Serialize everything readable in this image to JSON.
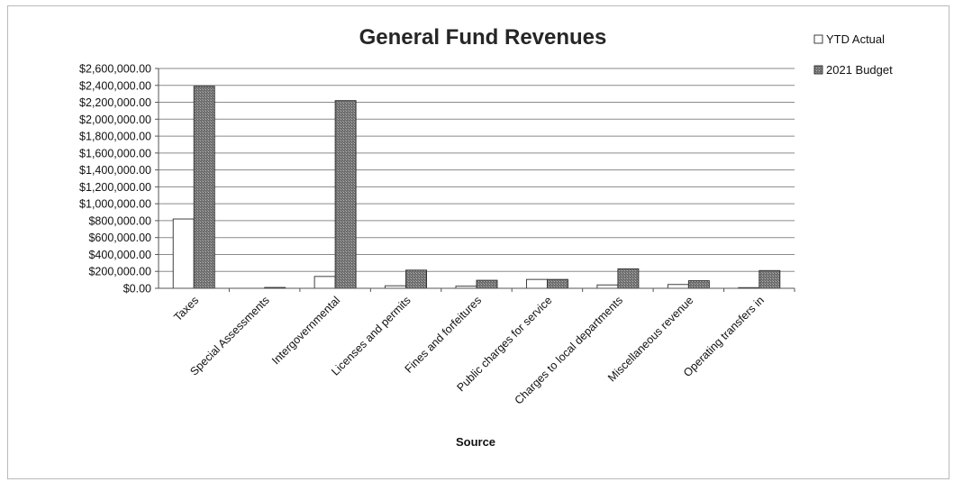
{
  "chart_data": {
    "type": "bar",
    "title": "General Fund Revenues",
    "xlabel": "Source",
    "ylabel": "",
    "ylim": [
      0,
      2600000
    ],
    "yticks": [
      0,
      200000,
      400000,
      600000,
      800000,
      1000000,
      1200000,
      1400000,
      1600000,
      1800000,
      2000000,
      2200000,
      2400000,
      2600000
    ],
    "ytick_labels": [
      "$0.00",
      "$200,000.00",
      "$400,000.00",
      "$600,000.00",
      "$800,000.00",
      "$1,000,000.00",
      "$1,200,000.00",
      "$1,400,000.00",
      "$1,600,000.00",
      "$1,800,000.00",
      "$2,000,000.00",
      "$2,200,000.00",
      "$2,400,000.00",
      "$2,600,000.00"
    ],
    "categories": [
      "Taxes",
      "Special Assessments",
      "Intergovernmental",
      "Licenses and permits",
      "Fines and forfeitures",
      "Public charges for service",
      "Charges to local departments",
      "Miscellaneous revenue",
      "Operating transfers in"
    ],
    "series": [
      {
        "name": "YTD Actual",
        "color": "#ffffff",
        "values": [
          820000,
          0,
          140000,
          30000,
          25000,
          105000,
          40000,
          45000,
          8000
        ]
      },
      {
        "name": "2021 Budget",
        "color": "#8c8c8c",
        "values": [
          2390000,
          10000,
          2220000,
          215000,
          95000,
          105000,
          230000,
          90000,
          210000
        ]
      }
    ],
    "grid": true,
    "legend_position": "top-right"
  }
}
